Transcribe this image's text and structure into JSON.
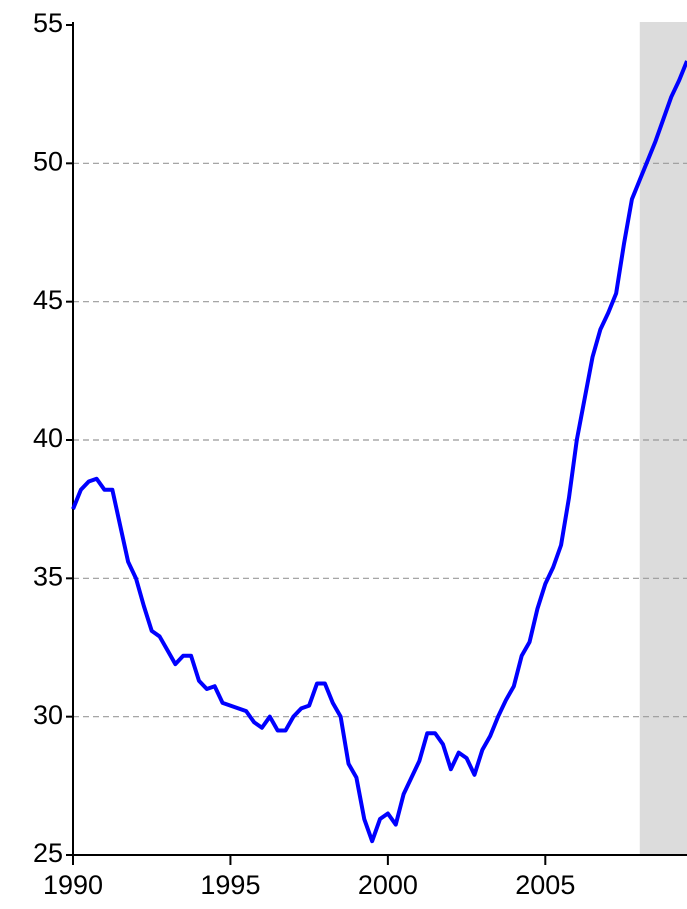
{
  "chart_data": {
    "type": "line",
    "x": [
      1990,
      1990.25,
      1990.5,
      1990.75,
      1991,
      1991.25,
      1991.5,
      1991.75,
      1992,
      1992.25,
      1992.5,
      1992.75,
      1993,
      1993.25,
      1993.5,
      1993.75,
      1994,
      1994.25,
      1994.5,
      1994.75,
      1995,
      1995.25,
      1995.5,
      1995.75,
      1996,
      1996.25,
      1996.5,
      1996.75,
      1997,
      1997.25,
      1997.5,
      1997.75,
      1998,
      1998.25,
      1998.5,
      1998.75,
      1999,
      1999.25,
      1999.5,
      1999.75,
      2000,
      2000.25,
      2000.5,
      2000.75,
      2001,
      2001.25,
      2001.5,
      2001.75,
      2002,
      2002.25,
      2002.5,
      2002.75,
      2003,
      2003.25,
      2003.5,
      2003.75,
      2004,
      2004.25,
      2004.5,
      2004.75,
      2005,
      2005.25,
      2005.5,
      2005.75,
      2006,
      2006.25,
      2006.5,
      2006.75,
      2007,
      2007.25,
      2007.5,
      2007.75,
      2008,
      2008.25,
      2008.5,
      2008.75,
      2009,
      2009.25,
      2009.5
    ],
    "series": [
      {
        "color": "#0000ff",
        "values": [
          37.5,
          38.2,
          38.5,
          38.6,
          38.2,
          38.2,
          36.9,
          35.6,
          35.0,
          34.0,
          33.1,
          32.9,
          32.4,
          31.9,
          32.2,
          32.2,
          31.3,
          31.0,
          31.1,
          30.5,
          30.4,
          30.3,
          30.2,
          29.8,
          29.6,
          30.0,
          29.5,
          29.5,
          30.0,
          30.3,
          30.4,
          31.2,
          31.2,
          30.5,
          30.0,
          28.3,
          27.8,
          26.3,
          25.5,
          26.3,
          26.5,
          26.1,
          27.2,
          27.8,
          28.4,
          29.4,
          29.4,
          29.0,
          28.1,
          28.7,
          28.5,
          27.9,
          28.8,
          29.3,
          30.0,
          30.6,
          31.1,
          32.2,
          32.7,
          33.9,
          34.8,
          35.4,
          36.2,
          37.9,
          40.0,
          41.5,
          43.0,
          44.0,
          44.6,
          45.3,
          47.1,
          48.7,
          49.4,
          50.1,
          50.8,
          51.6,
          52.4,
          53.0,
          53.7
        ]
      }
    ],
    "xlim": [
      1990,
      2009.5
    ],
    "xticks": [
      1990,
      1995,
      2000,
      2005
    ],
    "ylim": [
      25,
      55
    ],
    "yticks": [
      25,
      30,
      35,
      40,
      45,
      50,
      55
    ],
    "grid": true,
    "shaded_region": [
      2008,
      2009.5
    ]
  }
}
